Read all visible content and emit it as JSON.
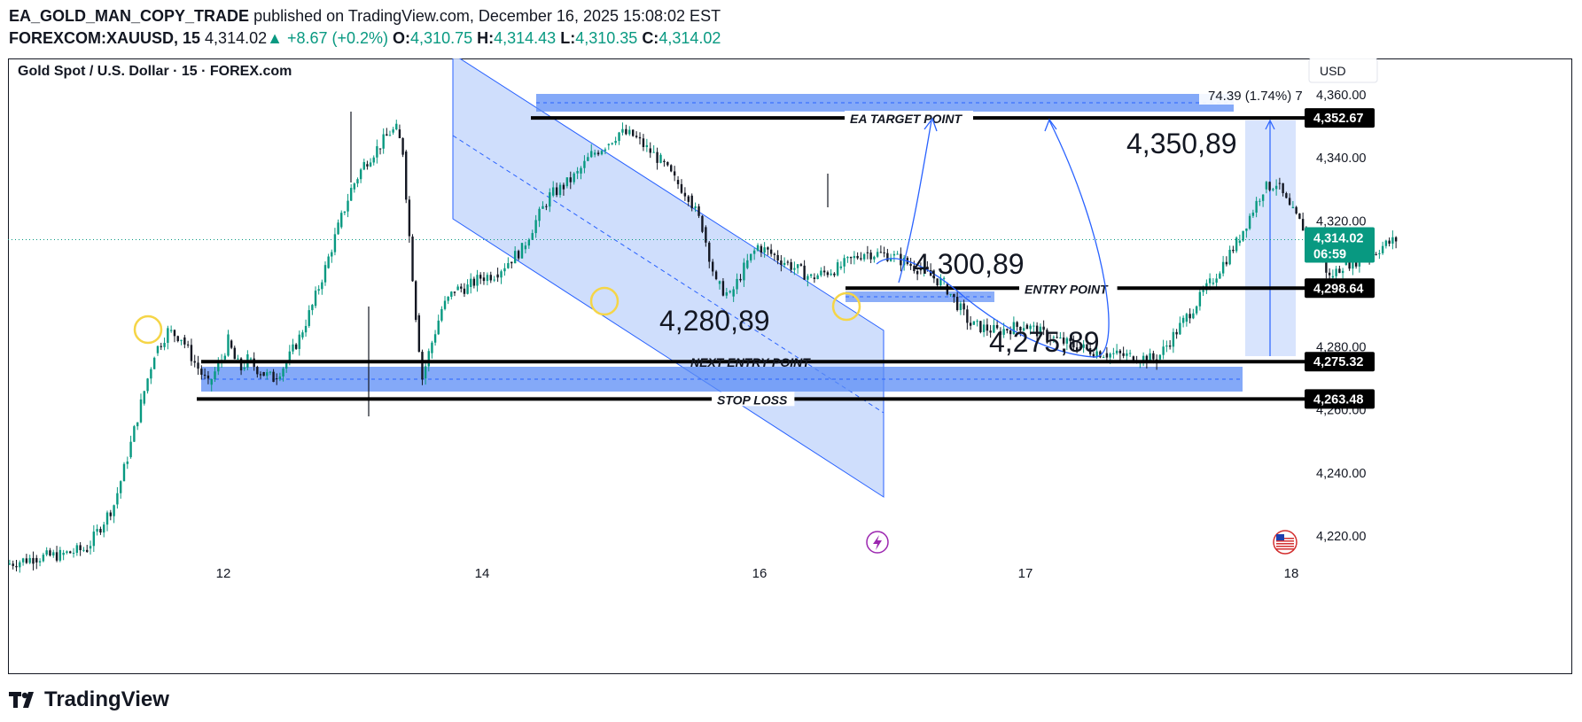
{
  "header": {
    "publisher": "EA_GOLD_MAN_COPY_TRADE",
    "published_text": "published on TradingView.com, December 16, 2025 15:08:02 EST",
    "symbol": "FOREXCOM:XAUUSD, 15",
    "last": "4,314.02",
    "change": "▲ +8.67 (+0.2%)",
    "o_label": "O:",
    "o": "4,310.75",
    "h_label": "H:",
    "h": "4,314.43",
    "l_label": "L:",
    "l": "4,310.35",
    "c_label": "C:",
    "c": "4,314.02"
  },
  "footer": {
    "brand": "TradingView"
  },
  "chart_data": {
    "type": "candlestick",
    "title": "Gold Spot / U.S. Dollar · 15 · FOREX.com",
    "currency_button": "USD",
    "ylim": [
      4210,
      4370
    ],
    "y_ticks": [
      "4,220.00",
      "4,240.00",
      "4,260.00",
      "4,280.00",
      "4,320.00",
      "4,340.00",
      "4,360.00"
    ],
    "y_tick_values": [
      4220,
      4240,
      4260,
      4280,
      4320,
      4340,
      4360
    ],
    "x_ticks": [
      "12",
      "14",
      "16",
      "17",
      "18"
    ],
    "x_tick_values": [
      12,
      14,
      16,
      17,
      18
    ],
    "xlim": [
      11.2,
      19.6
    ],
    "price_series": [
      [
        11.2,
        4211
      ],
      [
        11.3,
        4213
      ],
      [
        11.4,
        4214
      ],
      [
        11.5,
        4216
      ],
      [
        11.6,
        4230
      ],
      [
        11.65,
        4245
      ],
      [
        11.7,
        4262
      ],
      [
        11.75,
        4278
      ],
      [
        11.8,
        4285
      ],
      [
        11.85,
        4283
      ],
      [
        11.9,
        4275
      ],
      [
        11.95,
        4268
      ],
      [
        12.0,
        4276
      ],
      [
        12.05,
        4282
      ],
      [
        12.1,
        4276
      ],
      [
        12.15,
        4273
      ],
      [
        12.2,
        4276
      ],
      [
        12.3,
        4272
      ],
      [
        12.4,
        4270
      ],
      [
        12.5,
        4275
      ],
      [
        12.6,
        4283
      ],
      [
        12.7,
        4293
      ],
      [
        12.8,
        4305
      ],
      [
        12.9,
        4318
      ],
      [
        13.0,
        4330
      ],
      [
        13.1,
        4338
      ],
      [
        13.2,
        4343
      ],
      [
        13.3,
        4348
      ],
      [
        13.35,
        4349
      ],
      [
        13.4,
        4342
      ],
      [
        13.45,
        4315
      ],
      [
        13.5,
        4290
      ],
      [
        13.55,
        4270
      ],
      [
        13.6,
        4278
      ],
      [
        13.7,
        4292
      ],
      [
        13.8,
        4298
      ],
      [
        13.9,
        4299
      ],
      [
        14.0,
        4302
      ],
      [
        14.1,
        4303
      ],
      [
        14.2,
        4307
      ],
      [
        14.3,
        4311
      ],
      [
        14.4,
        4320
      ],
      [
        14.5,
        4328
      ],
      [
        14.6,
        4331
      ],
      [
        14.7,
        4335
      ],
      [
        14.8,
        4341
      ],
      [
        14.9,
        4344
      ],
      [
        15.0,
        4348
      ],
      [
        15.1,
        4347
      ],
      [
        15.2,
        4343
      ],
      [
        15.3,
        4339
      ],
      [
        15.4,
        4333
      ],
      [
        15.5,
        4328
      ],
      [
        15.6,
        4318
      ],
      [
        15.7,
        4300
      ],
      [
        15.8,
        4296
      ],
      [
        15.9,
        4305
      ],
      [
        16.0,
        4312
      ],
      [
        16.1,
        4307
      ],
      [
        16.2,
        4302
      ],
      [
        16.3,
        4305
      ],
      [
        16.4,
        4310
      ],
      [
        16.5,
        4309
      ],
      [
        16.6,
        4305
      ],
      [
        16.7,
        4300
      ],
      [
        16.8,
        4287
      ],
      [
        16.9,
        4285
      ],
      [
        17.0,
        4287
      ],
      [
        17.1,
        4283
      ],
      [
        17.2,
        4280
      ],
      [
        17.3,
        4278
      ],
      [
        17.4,
        4277
      ],
      [
        17.5,
        4276
      ],
      [
        17.6,
        4288
      ],
      [
        17.7,
        4300
      ],
      [
        17.8,
        4313
      ],
      [
        17.9,
        4330
      ],
      [
        17.95,
        4332
      ],
      [
        18.0,
        4324
      ],
      [
        18.05,
        4318
      ],
      [
        18.1,
        4312
      ],
      [
        18.15,
        4302
      ],
      [
        18.2,
        4306
      ],
      [
        18.3,
        4309
      ],
      [
        18.35,
        4312
      ],
      [
        18.4,
        4314.02
      ]
    ],
    "current_price": 4314.02,
    "current_price_label": "4,314.02",
    "countdown": "06:59",
    "levels": [
      {
        "price": 4352.67,
        "label": "EA TARGET POINT",
        "tag": "4,352.67"
      },
      {
        "price": 4298.64,
        "label": "ENTRY POINT",
        "tag": "4,298.64"
      },
      {
        "price": 4275.32,
        "label": "NEXT ENTRY POINT",
        "tag": "4,275.32"
      },
      {
        "price": 4263.48,
        "label": "STOP LOSS",
        "tag": "4,263.48"
      }
    ],
    "annotations": [
      {
        "text": "4,350,89",
        "x": 18.7,
        "y": 4344
      },
      {
        "text": "4,300,89",
        "x": 18.0,
        "y": 4298
      },
      {
        "text": "4,280,89",
        "x": 16.25,
        "y": 4286
      },
      {
        "text": "4,275,89",
        "x": 18.4,
        "y": 4280
      }
    ],
    "measure_label": "74.39 (1.74%) 7",
    "colors": {
      "up": "#089981",
      "down": "#131722",
      "zone": "#2962ff",
      "channel_fill": "#c7d8fc",
      "level": "#000000",
      "current_tag": "#089981",
      "circle": "#f5d547"
    }
  }
}
